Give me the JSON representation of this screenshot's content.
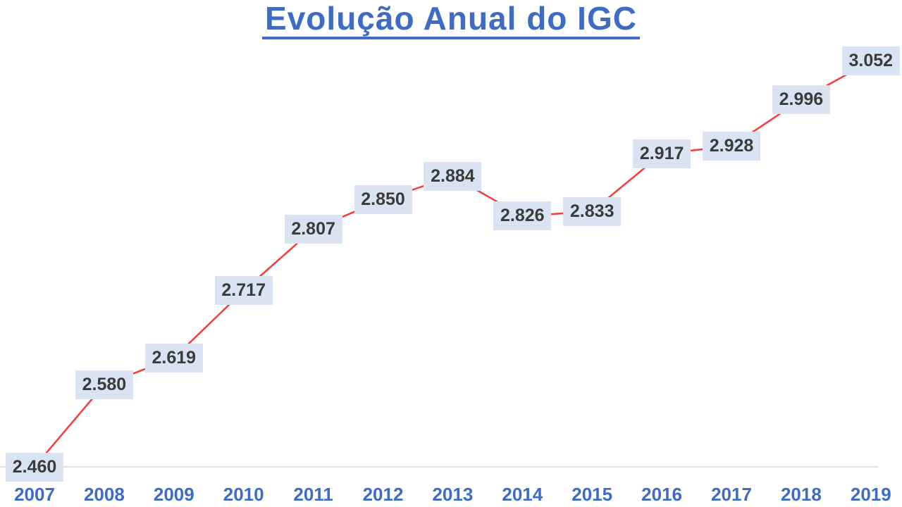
{
  "title": "Evolução Anual do IGC",
  "chart_data": {
    "type": "line",
    "title": "Evolução Anual do IGC",
    "categories": [
      "2007",
      "2008",
      "2009",
      "2010",
      "2011",
      "2012",
      "2013",
      "2014",
      "2015",
      "2016",
      "2017",
      "2018",
      "2019"
    ],
    "values": [
      2.46,
      2.58,
      2.619,
      2.717,
      2.807,
      2.85,
      2.884,
      2.826,
      2.833,
      2.917,
      2.928,
      2.996,
      3.052
    ],
    "value_labels": [
      "2.460",
      "2.580",
      "2.619",
      "2.717",
      "2.807",
      "2.850",
      "2.884",
      "2.826",
      "2.833",
      "2.917",
      "2.928",
      "2.996",
      "3.052"
    ],
    "series": [
      {
        "name": "IGC",
        "values": [
          2.46,
          2.58,
          2.619,
          2.717,
          2.807,
          2.85,
          2.884,
          2.826,
          2.833,
          2.917,
          2.928,
          2.996,
          3.052
        ]
      }
    ],
    "xlabel": "",
    "ylabel": "",
    "ylim": [
      2.4,
      3.1
    ],
    "grid": false,
    "legend": "none",
    "data_label_position": "center",
    "colors": {
      "line": "#fa3a3a",
      "label_box_fill": "#dae3f1",
      "label_text": "#3b3b3b",
      "axis_text": "#3d6bc6",
      "title": "#3d6bc6",
      "axis_line": "#d8d8d8",
      "background": "#ffffff"
    }
  }
}
